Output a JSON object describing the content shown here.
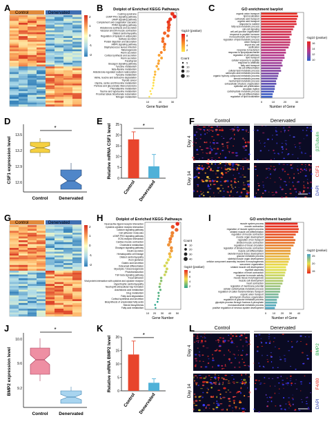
{
  "letters": [
    "A",
    "B",
    "C",
    "D",
    "E",
    "F",
    "G",
    "H",
    "I",
    "J",
    "K",
    "L"
  ],
  "heatmap_A": {
    "groups": [
      "Control",
      "Denervated"
    ],
    "scale": [
      "2",
      "1",
      "0",
      "-1",
      "-2"
    ]
  },
  "heatmap_G": {
    "groups": [
      "Control",
      "Denervated"
    ],
    "scale": [
      "2",
      "1",
      "0",
      "-1",
      "-2"
    ]
  },
  "dot_B": {
    "title": "Dotplot of Enriched KEGG Pathways",
    "xlabel": "Gene Number",
    "xticks": [
      "10",
      "20",
      "30"
    ],
    "legend_color_title": "-log10 (pvalue)",
    "legend_color_ticks": [
      "8",
      "6",
      "4",
      "2"
    ],
    "legend_size_title": "Count",
    "legend_size_ticks": [
      "5",
      "10",
      "20",
      "30"
    ],
    "pathways": [
      "Cushing syndrome",
      "cGMP-PKG signaling pathway",
      "cAMP signaling pathway",
      "Complement and coagulation cascades",
      "PPAR signaling pathway",
      "Aldosterone synthesis and secretion",
      "Vascular smooth muscle contraction",
      "Dilated cardiomyopathy",
      "Regulation of lipolysis in adipocytes",
      "Salivary secretion",
      "Protein digestion and absorption",
      "AMPK signaling pathway",
      "Staphylococcus aureus infection",
      "Melanogenesis",
      "Renin secretion",
      "Cortisol synthesis and secretion",
      "Renin secretion",
      "Parathyroid",
      "Glucagon signaling pathway",
      "Tyrosine metabolism",
      "beta-Alanine metabolism",
      "Aldosterone-regulated sodium reabsorption",
      "Tyrosine metabolism",
      "Valine, leucine and isoleucine degradation",
      "Thyroid cancer",
      "Glycine, serine and threonine metabolism",
      "Pentose and glucuronate interconversions",
      "Phenylalanine metabolism",
      "Taurine and hypotaurine metabolism",
      "Proximal tubule bicarbonate reclamation",
      "Nitrogen metabolism"
    ]
  },
  "bar_C": {
    "title": "GO enrichment barplot",
    "xlabel": "Number of Gene",
    "xticks": [
      "0",
      "10",
      "20",
      "30"
    ],
    "legend_title": "-log10 (pvalue)",
    "legend_ticks": [
      "16",
      "14",
      "12",
      "10"
    ],
    "terms": [
      "organic anion transport",
      "lipid localization",
      "carboxylic acid transport",
      "organic acid transport",
      "response to nutrient",
      "fatty acid metabolic process",
      "cell-cell signaling",
      "cell-cell junction organization",
      "response to peptide hormone",
      "monocarboxylic acid transport",
      "regulation of lipid metabolic process",
      "anion transport",
      "import into cell",
      "ossification",
      "response to bacterium",
      "response to lipopolysaccharide",
      "regulation of cell adhesion",
      "lipid transport",
      "cellular response to peptide",
      "response to antibiotic",
      "fatty acid transport",
      "fat cell differentiation",
      "cellular lipid metabolic process",
      "carboxylic acid metabolic process",
      "organic hydroxy compound metabolic process",
      "steroid metabolic process",
      "neutral lipid metabolic process",
      "extracellular structure organization",
      "epithelial cell proliferation",
      "circadian rhythm",
      "carbohydrate metabolic process",
      "fat cell differentiation",
      "regulation of lipid localization"
    ]
  },
  "box_D": {
    "ylabel": "CSF1 expression level",
    "yticks": [
      "13.5",
      "13.2",
      "12.9",
      "12.6"
    ],
    "groups": [
      "Control",
      "Denervated"
    ],
    "sig": "*"
  },
  "chart_data": [
    {
      "type": "bar",
      "panel": "E",
      "categories": [
        "Control",
        "Denervated"
      ],
      "values": [
        18,
        5.5
      ],
      "errors": [
        3.5,
        5.5
      ],
      "ylabel": "Relative mRNA CSF1 level",
      "ylim": [
        0,
        25
      ],
      "yticks": [
        "0",
        "5",
        "10",
        "15",
        "20",
        "25"
      ],
      "colors": [
        "#e8452c",
        "#4fb1d8"
      ],
      "annotation": "*"
    },
    {
      "type": "bar",
      "panel": "K",
      "categories": [
        "Control",
        "Denervated"
      ],
      "values": [
        13.5,
        3
      ],
      "errors": [
        5,
        1.5
      ],
      "ylabel": "Relative mRNA BMP2 level",
      "ylim": [
        0,
        20
      ],
      "yticks": [
        "0",
        "5",
        "10",
        "15",
        "20"
      ],
      "colors": [
        "#e8452c",
        "#4fb1d8"
      ],
      "annotation": "*"
    }
  ],
  "micro_F": {
    "cols": [
      "Control",
      "Denervated"
    ],
    "rows": [
      "Day 4",
      "Day 14"
    ],
    "channels": [
      "β3Tubulin",
      "CSF1",
      "DAPI"
    ]
  },
  "dot_H": {
    "title": "Dotplot of Enriched KEGG Pathways",
    "xlabel": "Gene Number",
    "xticks": [
      "10",
      "20",
      "30",
      "40",
      "50"
    ],
    "legend_color_title": "-log10 (pvalue)",
    "legend_size_title": "Count",
    "legend_size_ticks": [
      "10",
      "20",
      "30",
      "40"
    ],
    "legend_color_ticks": [
      "8",
      "6",
      "4",
      "2"
    ],
    "pathways": [
      "Neuroactive ligand-receptor interaction",
      "Cytokine-cytokine receptor interaction",
      "Calcium signaling pathway",
      "Cell adhesion molecules",
      "cGMP-PKG signaling pathway",
      "ECM-receptor interaction",
      "Cardiac muscle contraction",
      "Cholesterol metabolism",
      "Glucagon signaling pathway",
      "Insulin secretion",
      "Hematopoietic cell lineage",
      "Dilated cardiomyopathy",
      "Axon guidance",
      "Gastric acid secretion",
      "Osteoclast differentiation",
      "Glycolysis / Gluconeogenesis",
      "Phototransduction",
      "TGF-beta signaling pathway",
      "Focal adhesion",
      "Viral protein interaction with cytokine and cytokine receptor",
      "Hypertrophic cardiomyopathy",
      "Neutrophil extracellular trap formation",
      "Arachidonic acid metabolism",
      "Drug metabolism",
      "Fatty acid degradation",
      "Cortisol synthesis and secretion",
      "Biosynthesis of unsaturated fatty acids",
      "Steroid biosynthesis",
      "Fatty acid metabolism"
    ]
  },
  "bar_I": {
    "title": "GO enrichment barplot",
    "xlabel": "Number of Gene",
    "xticks": [
      "0",
      "10",
      "20",
      "30",
      "40"
    ],
    "legend_title": "-log10 (pvalue)",
    "legend_ticks": [
      "25",
      "20",
      "15"
    ],
    "terms": [
      "muscle system process",
      "muscle contraction",
      "regulation of muscle system process",
      "striated muscle cell differentiation",
      "regulation of muscle contraction",
      "muscle organ development",
      "regulation of ion transport",
      "striated muscle contraction",
      "regulation of blood circulation",
      "regulation of striated muscle contraction",
      "muscle cell differentiation",
      "skeletal muscle tissue development",
      "glucose metabolic process",
      "skeletal muscle organ development",
      "cellular component assembly involved in morphogenesis",
      "sarcomere organization",
      "striated muscle cell development",
      "myofibril assembly",
      "regulation of heart contraction",
      "response to muscle activity",
      "muscle tissue morphogenesis",
      "muscle cell development",
      "heart contraction",
      "regulation of membrane potential",
      "cellular carbohydrate metabolic process",
      "regulation of cation transmembrane transport",
      "organic anion transport",
      "actomyosin structure organization",
      "regulation of glucose metabolic process",
      "glycolytic process through fructose-6-phosphate",
      "monosaccharide metabolic process",
      "positive regulation of nervous system development"
    ]
  },
  "box_J": {
    "ylabel": "BMP2 expression level",
    "yticks": [
      "10.0",
      "9.6",
      "9.2"
    ],
    "groups": [
      "Control",
      "Denervated"
    ],
    "sig": "*"
  },
  "micro_L": {
    "cols": [
      "Control",
      "Denervated"
    ],
    "rows": [
      "Day 4",
      "Day 14"
    ],
    "channels": [
      "BMP2",
      "F4/80",
      "DAPI"
    ]
  }
}
